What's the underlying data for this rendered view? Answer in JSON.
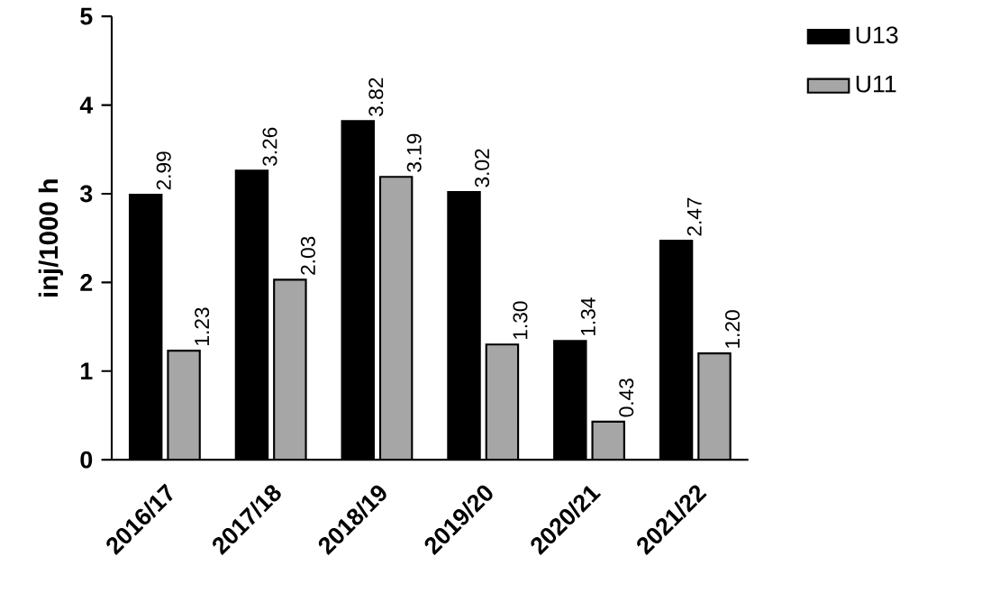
{
  "chart_data": {
    "type": "bar",
    "ylabel": "inj/1000 h",
    "categories": [
      "2016/17",
      "2017/18",
      "2018/19",
      "2019/20",
      "2020/21",
      "2021/22"
    ],
    "series": [
      {
        "name": "U13",
        "color": "#000000",
        "values": [
          2.99,
          3.26,
          3.82,
          3.02,
          1.34,
          2.47
        ],
        "value_labels": [
          "2.99",
          "3.26",
          "3.82",
          "3.02",
          "1.34",
          "2.47"
        ]
      },
      {
        "name": "U11",
        "color": "#a6a6a6",
        "values": [
          1.23,
          2.03,
          3.19,
          1.3,
          0.43,
          1.2
        ],
        "value_labels": [
          "1.23",
          "2.03",
          "3.19",
          "1.30",
          "0.43",
          "1.20"
        ]
      }
    ],
    "ylim": [
      0,
      5
    ],
    "yticks": [
      0,
      1,
      2,
      3,
      4,
      5
    ],
    "grid": false,
    "legend": "top right"
  }
}
